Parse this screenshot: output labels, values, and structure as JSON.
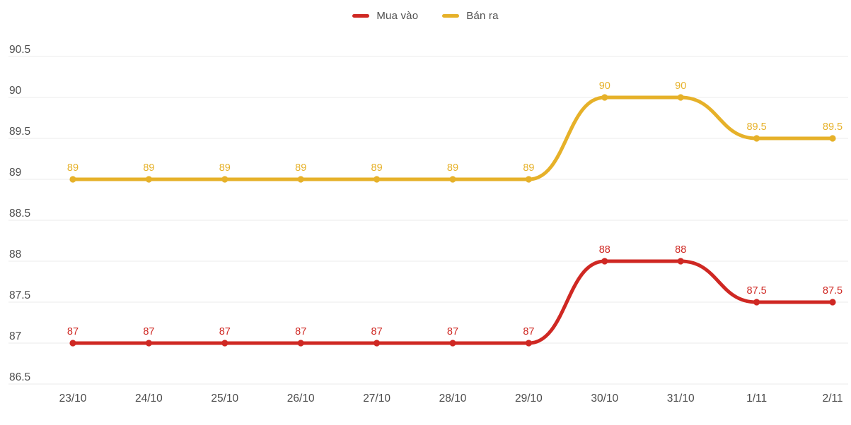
{
  "chart_data": {
    "type": "line",
    "title": "",
    "xlabel": "",
    "ylabel": "",
    "categories": [
      "23/10",
      "24/10",
      "25/10",
      "26/10",
      "27/10",
      "28/10",
      "29/10",
      "30/10",
      "31/10",
      "1/11",
      "2/11"
    ],
    "series": [
      {
        "name": "Mua vào",
        "color": "#cf2823",
        "values": [
          87,
          87,
          87,
          87,
          87,
          87,
          87,
          88,
          88,
          87.5,
          87.5
        ]
      },
      {
        "name": "Bán ra",
        "color": "#e6b129",
        "values": [
          89,
          89,
          89,
          89,
          89,
          89,
          89,
          90,
          90,
          89.5,
          89.5
        ]
      }
    ],
    "ylim": [
      86.5,
      90.5
    ],
    "yticks": [
      90.5,
      90,
      89.5,
      89,
      88.5,
      88,
      87.5,
      87,
      86.5
    ],
    "grid": true,
    "smooth": true,
    "show_point_labels": true,
    "legend_position": "top-center"
  },
  "colors": {
    "background": "#ffffff",
    "grid": "#ebebeb",
    "axis_text": "#4c4c4c",
    "legend_text": "#4f4f4f"
  }
}
